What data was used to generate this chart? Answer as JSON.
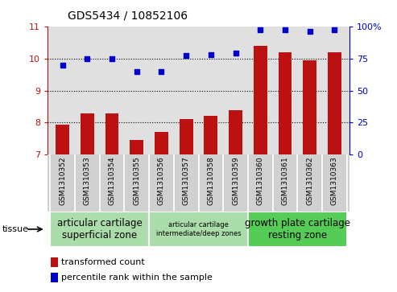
{
  "title": "GDS5434 / 10852106",
  "samples": [
    "GSM1310352",
    "GSM1310353",
    "GSM1310354",
    "GSM1310355",
    "GSM1310356",
    "GSM1310357",
    "GSM1310358",
    "GSM1310359",
    "GSM1310360",
    "GSM1310361",
    "GSM1310362",
    "GSM1310363"
  ],
  "bar_values": [
    7.93,
    8.28,
    8.28,
    7.47,
    7.72,
    8.12,
    8.2,
    8.38,
    10.38,
    10.2,
    9.95,
    10.18
  ],
  "dot_values": [
    70,
    75,
    75,
    65,
    65,
    77,
    78,
    79,
    97,
    97,
    96,
    97
  ],
  "bar_color": "#bb1111",
  "dot_color": "#0000cc",
  "ylim_left": [
    7,
    11
  ],
  "ylim_right": [
    0,
    100
  ],
  "yticks_left": [
    7,
    8,
    9,
    10,
    11
  ],
  "ytick_labels_right": [
    "0",
    "25",
    "50",
    "75",
    "100%"
  ],
  "yticks_right": [
    0,
    25,
    50,
    75,
    100
  ],
  "grid_values": [
    8,
    9,
    10
  ],
  "tissue_groups": [
    {
      "label": "articular cartilage\nsuperficial zone",
      "start": 0,
      "end": 4,
      "fontsize": 8.5,
      "color": "#aaddaa"
    },
    {
      "label": "articular cartilage\nintermediate/deep zones",
      "start": 4,
      "end": 8,
      "fontsize": 6.0,
      "color": "#aaddaa"
    },
    {
      "label": "growth plate cartilage\nresting zone",
      "start": 8,
      "end": 12,
      "fontsize": 8.5,
      "color": "#55cc55"
    }
  ],
  "legend_bar_label": "transformed count",
  "legend_dot_label": "percentile rank within the sample",
  "tissue_label": "tissue",
  "plot_bg_color": "#e0e0e0",
  "sample_bg_color": "#d0d0d0",
  "white": "#ffffff"
}
